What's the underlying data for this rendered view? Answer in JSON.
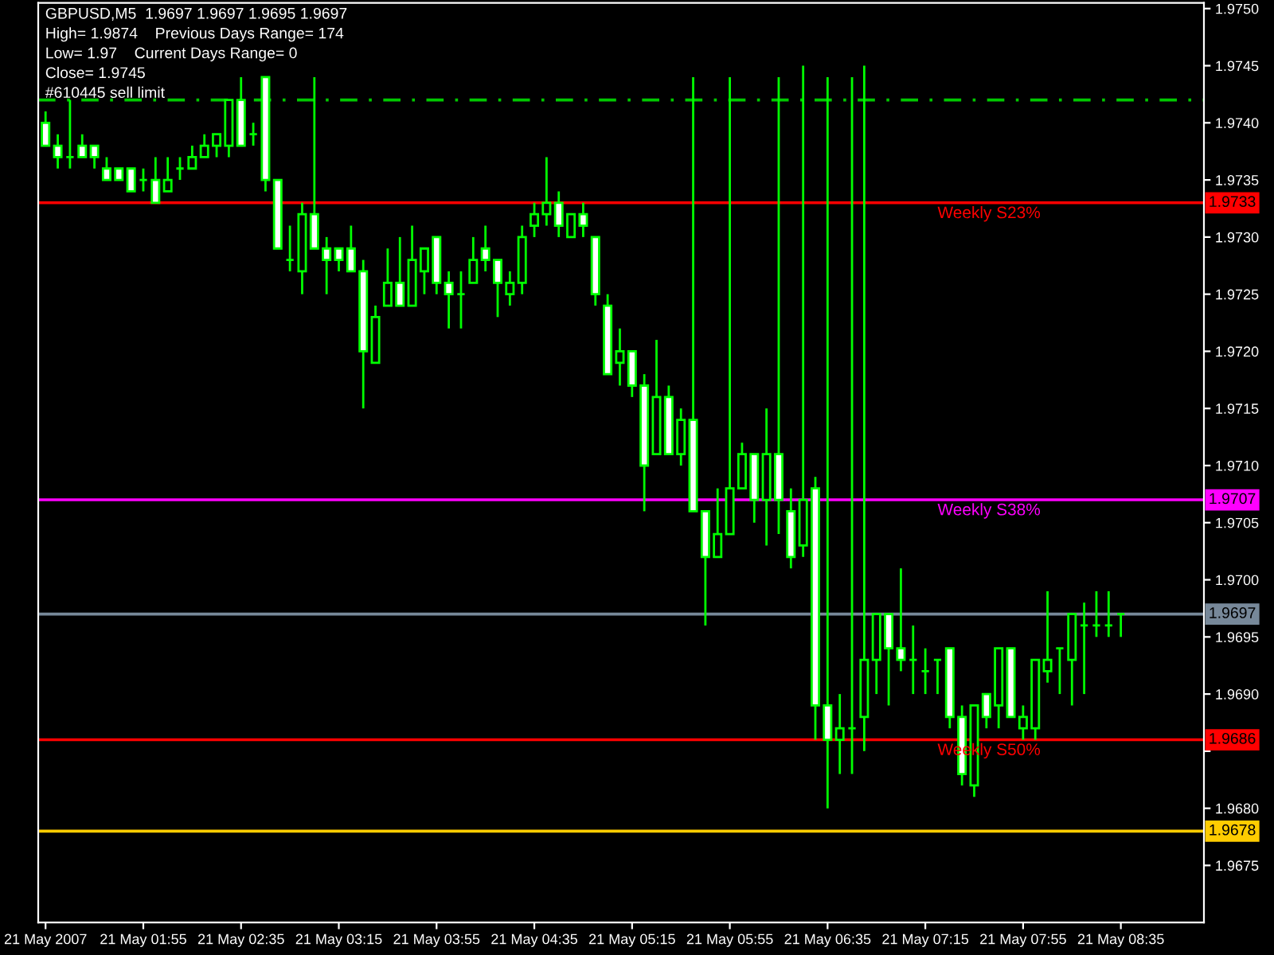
{
  "chart_data": {
    "type": "candlestick",
    "title": "GBPUSD,M5  1.9697 1.9697 1.9695 1.9697",
    "annotations": [
      "High= 1.9874    Previous Days Range= 174",
      "Low= 1.97    Current Days Range= 0",
      "Close= 1.9745",
      "#610445 sell limit",
      {
        "text": "Weekly S23%",
        "x": "2007-05-21T07:20",
        "y": 1.9733
      },
      {
        "text": "Weekly S38%",
        "x": "2007-05-21T07:20",
        "y": 1.9707
      },
      {
        "text": "Weekly S50%",
        "x": "2007-05-21T07:20",
        "y": 1.9686
      }
    ],
    "x": [
      "2007-05-21T01:15",
      "2007-05-21T01:20",
      "2007-05-21T01:25",
      "2007-05-21T01:30",
      "2007-05-21T01:35",
      "2007-05-21T01:40",
      "2007-05-21T01:45",
      "2007-05-21T01:50",
      "2007-05-21T01:55",
      "2007-05-21T02:00",
      "2007-05-21T02:05",
      "2007-05-21T02:10",
      "2007-05-21T02:15",
      "2007-05-21T02:20",
      "2007-05-21T02:25",
      "2007-05-21T02:30",
      "2007-05-21T02:35",
      "2007-05-21T02:40",
      "2007-05-21T02:45",
      "2007-05-21T02:50",
      "2007-05-21T02:55",
      "2007-05-21T03:00",
      "2007-05-21T03:05",
      "2007-05-21T03:10",
      "2007-05-21T03:15",
      "2007-05-21T03:20",
      "2007-05-21T03:25",
      "2007-05-21T03:30",
      "2007-05-21T03:35",
      "2007-05-21T03:40",
      "2007-05-21T03:45",
      "2007-05-21T03:50",
      "2007-05-21T03:55",
      "2007-05-21T04:00",
      "2007-05-21T04:05",
      "2007-05-21T04:10",
      "2007-05-21T04:15",
      "2007-05-21T04:20",
      "2007-05-21T04:25",
      "2007-05-21T04:30",
      "2007-05-21T04:35",
      "2007-05-21T04:40",
      "2007-05-21T04:45",
      "2007-05-21T04:50",
      "2007-05-21T04:55",
      "2007-05-21T05:00",
      "2007-05-21T05:05",
      "2007-05-21T05:10",
      "2007-05-21T05:15",
      "2007-05-21T05:20",
      "2007-05-21T05:25",
      "2007-05-21T05:30",
      "2007-05-21T05:35",
      "2007-05-21T05:40",
      "2007-05-21T05:45",
      "2007-05-21T05:50",
      "2007-05-21T05:55",
      "2007-05-21T06:00",
      "2007-05-21T06:05",
      "2007-05-21T06:10",
      "2007-05-21T06:15",
      "2007-05-21T06:20",
      "2007-05-21T06:25",
      "2007-05-21T06:30",
      "2007-05-21T06:35",
      "2007-05-21T06:40",
      "2007-05-21T06:45",
      "2007-05-21T06:50",
      "2007-05-21T06:55",
      "2007-05-21T07:00",
      "2007-05-21T07:05",
      "2007-05-21T07:10",
      "2007-05-21T07:15",
      "2007-05-21T07:20",
      "2007-05-21T07:25",
      "2007-05-21T07:30",
      "2007-05-21T07:35",
      "2007-05-21T07:40",
      "2007-05-21T07:45",
      "2007-05-21T07:50",
      "2007-05-21T07:55",
      "2007-05-21T08:00",
      "2007-05-21T08:05",
      "2007-05-21T08:10",
      "2007-05-21T08:15",
      "2007-05-21T08:20",
      "2007-05-21T08:25",
      "2007-05-21T08:30",
      "2007-05-21T08:35"
    ],
    "ohlc": [
      [
        1.974,
        1.9741,
        1.9738,
        1.9738
      ],
      [
        1.9738,
        1.9739,
        1.9736,
        1.9737
      ],
      [
        1.9737,
        1.9742,
        1.9736,
        1.9737
      ],
      [
        1.9738,
        1.9739,
        1.9737,
        1.9737
      ],
      [
        1.9738,
        1.9738,
        1.9736,
        1.9737
      ],
      [
        1.9736,
        1.9737,
        1.9735,
        1.9735
      ],
      [
        1.9736,
        1.9736,
        1.9735,
        1.9735
      ],
      [
        1.9736,
        1.9736,
        1.9734,
        1.9734
      ],
      [
        1.9735,
        1.9736,
        1.9734,
        1.9735
      ],
      [
        1.9735,
        1.9737,
        1.9733,
        1.9733
      ],
      [
        1.9734,
        1.9737,
        1.9734,
        1.9735
      ],
      [
        1.9736,
        1.9737,
        1.9735,
        1.9736
      ],
      [
        1.9736,
        1.9738,
        1.9736,
        1.9737
      ],
      [
        1.9737,
        1.9739,
        1.9737,
        1.9738
      ],
      [
        1.9738,
        1.9739,
        1.9737,
        1.9739
      ],
      [
        1.9738,
        1.9742,
        1.9737,
        1.9742
      ],
      [
        1.9742,
        1.9744,
        1.9738,
        1.9738
      ],
      [
        1.9739,
        1.974,
        1.9738,
        1.9739
      ],
      [
        1.9744,
        1.9744,
        1.9734,
        1.9735
      ],
      [
        1.9735,
        1.9735,
        1.9729,
        1.9729
      ],
      [
        1.9728,
        1.9731,
        1.9727,
        1.9728
      ],
      [
        1.9727,
        1.9733,
        1.9725,
        1.9732
      ],
      [
        1.9732,
        1.9744,
        1.9729,
        1.9729
      ],
      [
        1.9729,
        1.973,
        1.9725,
        1.9728
      ],
      [
        1.9729,
        1.9729,
        1.9727,
        1.9728
      ],
      [
        1.9729,
        1.9731,
        1.9727,
        1.9727
      ],
      [
        1.9727,
        1.9728,
        1.9715,
        1.972
      ],
      [
        1.9719,
        1.9724,
        1.9719,
        1.9723
      ],
      [
        1.9724,
        1.9729,
        1.9724,
        1.9726
      ],
      [
        1.9726,
        1.973,
        1.9724,
        1.9724
      ],
      [
        1.9724,
        1.9731,
        1.9724,
        1.9728
      ],
      [
        1.9727,
        1.9729,
        1.9725,
        1.9729
      ],
      [
        1.973,
        1.973,
        1.9725,
        1.9726
      ],
      [
        1.9726,
        1.9727,
        1.9722,
        1.9725
      ],
      [
        1.9725,
        1.9727,
        1.9722,
        1.9725
      ],
      [
        1.9726,
        1.973,
        1.9726,
        1.9728
      ],
      [
        1.9729,
        1.9731,
        1.9727,
        1.9728
      ],
      [
        1.9728,
        1.9728,
        1.9723,
        1.9726
      ],
      [
        1.9725,
        1.9727,
        1.9724,
        1.9726
      ],
      [
        1.9726,
        1.9731,
        1.9725,
        1.973
      ],
      [
        1.9731,
        1.9733,
        1.973,
        1.9732
      ],
      [
        1.9732,
        1.9737,
        1.9731,
        1.9733
      ],
      [
        1.9733,
        1.9734,
        1.973,
        1.9731
      ],
      [
        1.973,
        1.9732,
        1.973,
        1.9732
      ],
      [
        1.9732,
        1.9733,
        1.973,
        1.9731
      ],
      [
        1.973,
        1.973,
        1.9724,
        1.9725
      ],
      [
        1.9724,
        1.9725,
        1.9718,
        1.9718
      ],
      [
        1.9719,
        1.9722,
        1.9717,
        1.972
      ],
      [
        1.972,
        1.972,
        1.9716,
        1.9717
      ],
      [
        1.9717,
        1.9718,
        1.9706,
        1.971
      ],
      [
        1.9711,
        1.9721,
        1.9711,
        1.9716
      ],
      [
        1.9716,
        1.9717,
        1.9711,
        1.9711
      ],
      [
        1.9711,
        1.9715,
        1.971,
        1.9714
      ],
      [
        1.9714,
        1.9744,
        1.9706,
        1.9706
      ],
      [
        1.9706,
        1.9706,
        1.9696,
        1.9702
      ],
      [
        1.9702,
        1.9708,
        1.9702,
        1.9704
      ],
      [
        1.9704,
        1.9744,
        1.9704,
        1.9708
      ],
      [
        1.9708,
        1.9712,
        1.9708,
        1.9711
      ],
      [
        1.9711,
        1.9711,
        1.9705,
        1.9707
      ],
      [
        1.9707,
        1.9715,
        1.9703,
        1.9711
      ],
      [
        1.9711,
        1.9744,
        1.9704,
        1.9707
      ],
      [
        1.9706,
        1.9708,
        1.9701,
        1.9702
      ],
      [
        1.9703,
        1.9745,
        1.9702,
        1.9707
      ],
      [
        1.9708,
        1.9709,
        1.9686,
        1.9689
      ],
      [
        1.9689,
        1.9744,
        1.968,
        1.9686
      ],
      [
        1.9686,
        1.969,
        1.9683,
        1.9687
      ],
      [
        1.9687,
        1.9744,
        1.9683,
        1.9687
      ],
      [
        1.9688,
        1.9745,
        1.9685,
        1.9693
      ],
      [
        1.9693,
        1.9697,
        1.969,
        1.9697
      ],
      [
        1.9697,
        1.9697,
        1.9689,
        1.9694
      ],
      [
        1.9694,
        1.9701,
        1.9692,
        1.9693
      ],
      [
        1.9693,
        1.9696,
        1.969,
        1.9693
      ],
      [
        1.9692,
        1.9694,
        1.969,
        1.9692
      ],
      [
        1.9693,
        1.9693,
        1.969,
        1.9693
      ],
      [
        1.9694,
        1.9694,
        1.9687,
        1.9688
      ],
      [
        1.9688,
        1.9689,
        1.9682,
        1.9683
      ],
      [
        1.9682,
        1.9689,
        1.9681,
        1.9689
      ],
      [
        1.969,
        1.969,
        1.9687,
        1.9688
      ],
      [
        1.9689,
        1.9694,
        1.9687,
        1.9694
      ],
      [
        1.9694,
        1.9694,
        1.9688,
        1.9688
      ],
      [
        1.9687,
        1.9689,
        1.9686,
        1.9688
      ],
      [
        1.9687,
        1.9693,
        1.9686,
        1.9693
      ],
      [
        1.9692,
        1.9699,
        1.9691,
        1.9693
      ],
      [
        1.9694,
        1.9694,
        1.969,
        1.9694
      ],
      [
        1.9693,
        1.9697,
        1.9689,
        1.9697
      ],
      [
        1.9696,
        1.9698,
        1.969,
        1.9696
      ],
      [
        1.9696,
        1.9699,
        1.9695,
        1.9696
      ],
      [
        1.9696,
        1.9699,
        1.9695,
        1.9696
      ],
      [
        1.9697,
        1.9697,
        1.9695,
        1.9697
      ]
    ],
    "ref_lines": [
      {
        "axis": "y",
        "value": 1.9742,
        "label": null,
        "color": "#00c800",
        "line_style": "dashed"
      },
      {
        "axis": "y",
        "value": 1.9733,
        "label": "1.9733",
        "color": "#ff0000",
        "line_style": "solid"
      },
      {
        "axis": "y",
        "value": 1.9707,
        "label": "1.9707",
        "color": "#ff00ff",
        "line_style": "solid"
      },
      {
        "axis": "y",
        "value": 1.9697,
        "label": "1.9697",
        "color": "#778899",
        "line_style": "solid"
      },
      {
        "axis": "y",
        "value": 1.9686,
        "label": "1.9686",
        "color": "#ff0000",
        "line_style": "solid"
      },
      {
        "axis": "y",
        "value": 1.9678,
        "label": "1.9678",
        "color": "#ffcc00",
        "line_style": "solid"
      }
    ],
    "xlim": [
      "2007-05-21T01:12",
      "2007-05-21T09:09"
    ],
    "xticks": [
      {
        "value": "2007-05-21T01:15",
        "label": "21 May 2007"
      },
      {
        "value": "2007-05-21T01:55",
        "label": "21 May 01:55"
      },
      {
        "value": "2007-05-21T02:35",
        "label": "21 May 02:35"
      },
      {
        "value": "2007-05-21T03:15",
        "label": "21 May 03:15"
      },
      {
        "value": "2007-05-21T03:55",
        "label": "21 May 03:55"
      },
      {
        "value": "2007-05-21T04:35",
        "label": "21 May 04:35"
      },
      {
        "value": "2007-05-21T05:15",
        "label": "21 May 05:15"
      },
      {
        "value": "2007-05-21T05:55",
        "label": "21 May 05:55"
      },
      {
        "value": "2007-05-21T06:35",
        "label": "21 May 06:35"
      },
      {
        "value": "2007-05-21T07:15",
        "label": "21 May 07:15"
      },
      {
        "value": "2007-05-21T07:55",
        "label": "21 May 07:55"
      },
      {
        "value": "2007-05-21T08:35",
        "label": "21 May 08:35"
      }
    ],
    "ylim": [
      1.967,
      1.97505
    ],
    "yticks": [
      {
        "value": 1.975,
        "label": "1.9750"
      },
      1.9745,
      {
        "value": 1.974,
        "label": "1.9740"
      },
      1.9735,
      {
        "value": 1.973,
        "label": "1.9730"
      },
      1.9725,
      {
        "value": 1.972,
        "label": "1.9720"
      },
      1.9715,
      {
        "value": 1.971,
        "label": "1.9710"
      },
      1.9705,
      {
        "value": 1.97,
        "label": "1.9700"
      },
      1.9695,
      {
        "value": 1.969,
        "label": "1.9690"
      },
      {
        "value": 1.9685,
        "label": null
      },
      {
        "value": 1.968,
        "label": "1.9680"
      },
      1.9675
    ],
    "grid": false,
    "legend": false
  }
}
